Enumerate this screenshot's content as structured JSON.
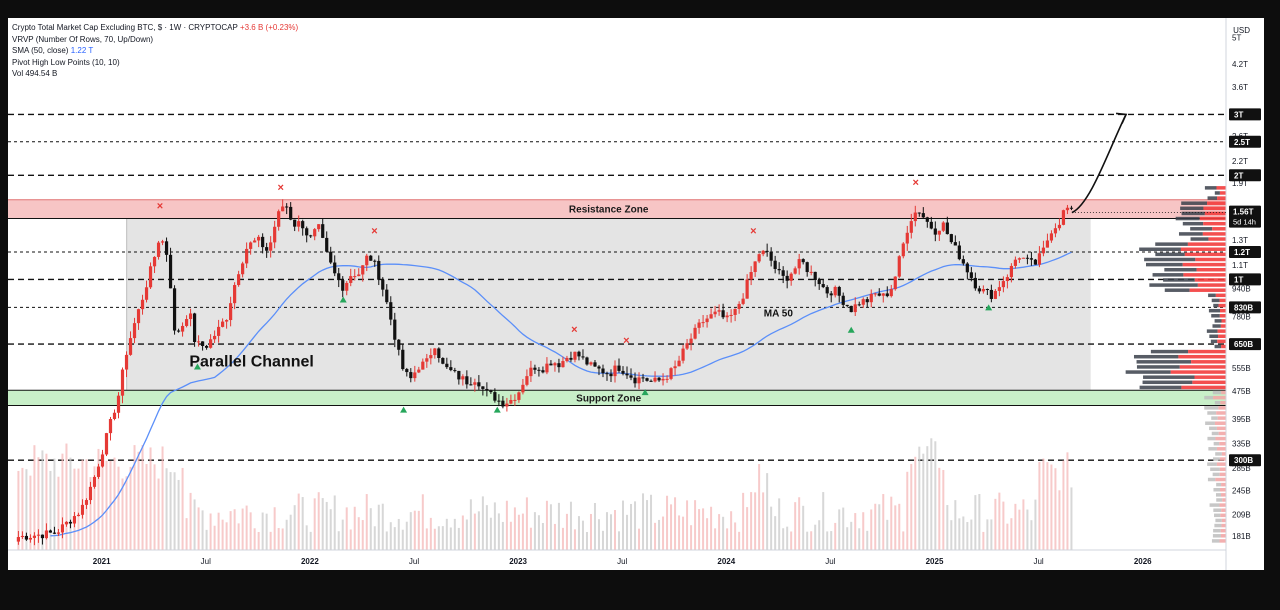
{
  "header": {
    "symbol_line": "Crypto Total Market Cap Excluding BTC, $ · 1W · CRYPTOCAP",
    "change": "+3.6 B (+0.23%)",
    "indicators": [
      {
        "name": "VRVP (Number Of Rows, 70, Up/Down)",
        "value": ""
      },
      {
        "name": "SMA (50, close)",
        "value": "1.22 T"
      },
      {
        "name": "Pivot High Low Points (10, 10)",
        "value": ""
      },
      {
        "name": "Vol",
        "value": "494.54 B"
      }
    ]
  },
  "currency": "USD",
  "colors": {
    "up": "#e53935",
    "down": "#111111",
    "sma": "#5b8ff9",
    "resistance": "#f7c5c5",
    "support": "#c8efc8",
    "channel": "#e4e4e4",
    "pivot_high": "#e53935",
    "pivot_low": "#26a65b"
  },
  "chart_data": {
    "type": "candlestick",
    "scale": "log",
    "x_range": [
      2020.55,
      2026.4
    ],
    "y_range": [
      165,
      5700
    ],
    "x_ticks": [
      {
        "x": 2021.0,
        "label": "2021",
        "bold": true
      },
      {
        "x": 2021.5,
        "label": "Jul",
        "bold": false
      },
      {
        "x": 2022.0,
        "label": "2022",
        "bold": true
      },
      {
        "x": 2022.5,
        "label": "Jul",
        "bold": false
      },
      {
        "x": 2023.0,
        "label": "2023",
        "bold": true
      },
      {
        "x": 2023.5,
        "label": "Jul",
        "bold": false
      },
      {
        "x": 2024.0,
        "label": "2024",
        "bold": true
      },
      {
        "x": 2024.5,
        "label": "Jul",
        "bold": false
      },
      {
        "x": 2025.0,
        "label": "2025",
        "bold": true
      },
      {
        "x": 2025.5,
        "label": "Jul",
        "bold": false
      },
      {
        "x": 2026.0,
        "label": "2026",
        "bold": true
      }
    ],
    "y_ticks": [
      {
        "v": 5000,
        "label": "5T"
      },
      {
        "v": 4200,
        "label": "4.2T"
      },
      {
        "v": 3600,
        "label": "3.6T"
      },
      {
        "v": 2600,
        "label": "2.6T"
      },
      {
        "v": 2200,
        "label": "2.2T"
      },
      {
        "v": 1900,
        "label": "1.9T"
      },
      {
        "v": 1300,
        "label": "1.3T"
      },
      {
        "v": 1100,
        "label": "1.1T"
      },
      {
        "v": 940,
        "label": "940B"
      },
      {
        "v": 780,
        "label": "780B"
      },
      {
        "v": 555,
        "label": "555B"
      },
      {
        "v": 475,
        "label": "475B"
      },
      {
        "v": 395,
        "label": "395B"
      },
      {
        "v": 335,
        "label": "335B"
      },
      {
        "v": 285,
        "label": "285B"
      },
      {
        "v": 245,
        "label": "245B"
      },
      {
        "v": 209,
        "label": "209B"
      },
      {
        "v": 181,
        "label": "181B"
      }
    ],
    "price_badges": [
      {
        "v": 3000,
        "label": "3T"
      },
      {
        "v": 2500,
        "label": "2.5T"
      },
      {
        "v": 2000,
        "label": "2T"
      },
      {
        "v": 1200,
        "label": "1.2T"
      },
      {
        "v": 1000,
        "label": "1T"
      },
      {
        "v": 830,
        "label": "830B"
      },
      {
        "v": 650,
        "label": "650B"
      },
      {
        "v": 300,
        "label": "300B"
      }
    ],
    "last_price": {
      "v": 1560,
      "label": "1.56T",
      "countdown": "5d 14h"
    },
    "levels": [
      {
        "v": 3000,
        "style": "long"
      },
      {
        "v": 2500,
        "style": "short"
      },
      {
        "v": 2000,
        "style": "long"
      },
      {
        "v": 1200,
        "style": "short"
      },
      {
        "v": 1000,
        "style": "long"
      },
      {
        "v": 830,
        "style": "short"
      },
      {
        "v": 650,
        "style": "long"
      },
      {
        "v": 300,
        "style": "long"
      }
    ],
    "zones": [
      {
        "name": "Resistance Zone",
        "low": 1500,
        "high": 1700,
        "x_start": 2020.55,
        "x_end": 2026.4
      },
      {
        "name": "Support Zone",
        "low": 432,
        "high": 478,
        "x_start": 2020.55,
        "x_end": 2026.4
      }
    ],
    "channel": {
      "label": "Parallel Channel",
      "x_start": 2021.12,
      "x_end": 2025.75,
      "low": 478,
      "high": 1500
    },
    "ma_label": "MA 50",
    "closes": [
      [
        2020.6,
        180
      ],
      [
        2020.78,
        185
      ],
      [
        2020.9,
        215
      ],
      [
        2020.96,
        262
      ],
      [
        2021.02,
        345
      ],
      [
        2021.08,
        460
      ],
      [
        2021.12,
        620
      ],
      [
        2021.15,
        720
      ],
      [
        2021.2,
        900
      ],
      [
        2021.25,
        1140
      ],
      [
        2021.28,
        1350
      ],
      [
        2021.32,
        1150
      ],
      [
        2021.35,
        700
      ],
      [
        2021.38,
        720
      ],
      [
        2021.42,
        820
      ],
      [
        2021.45,
        650
      ],
      [
        2021.5,
        640
      ],
      [
        2021.55,
        700
      ],
      [
        2021.6,
        780
      ],
      [
        2021.65,
        1030
      ],
      [
        2021.7,
        1250
      ],
      [
        2021.75,
        1300
      ],
      [
        2021.8,
        1200
      ],
      [
        2021.84,
        1500
      ],
      [
        2021.88,
        1680
      ],
      [
        2021.92,
        1440
      ],
      [
        2021.96,
        1460
      ],
      [
        2022.0,
        1300
      ],
      [
        2022.04,
        1420
      ],
      [
        2022.08,
        1180
      ],
      [
        2022.12,
        1030
      ],
      [
        2022.16,
        950
      ],
      [
        2022.2,
        1040
      ],
      [
        2022.24,
        1040
      ],
      [
        2022.28,
        1180
      ],
      [
        2022.32,
        1080
      ],
      [
        2022.36,
        900
      ],
      [
        2022.4,
        720
      ],
      [
        2022.44,
        560
      ],
      [
        2022.48,
        510
      ],
      [
        2022.52,
        560
      ],
      [
        2022.56,
        575
      ],
      [
        2022.6,
        650
      ],
      [
        2022.64,
        560
      ],
      [
        2022.68,
        540
      ],
      [
        2022.72,
        520
      ],
      [
        2022.76,
        505
      ],
      [
        2022.8,
        520
      ],
      [
        2022.84,
        470
      ],
      [
        2022.88,
        460
      ],
      [
        2022.92,
        440
      ],
      [
        2022.96,
        445
      ],
      [
        2023.0,
        470
      ],
      [
        2023.04,
        530
      ],
      [
        2023.08,
        560
      ],
      [
        2023.12,
        555
      ],
      [
        2023.16,
        580
      ],
      [
        2023.2,
        570
      ],
      [
        2023.24,
        600
      ],
      [
        2023.28,
        610
      ],
      [
        2023.32,
        580
      ],
      [
        2023.36,
        555
      ],
      [
        2023.4,
        545
      ],
      [
        2023.44,
        535
      ],
      [
        2023.48,
        560
      ],
      [
        2023.52,
        540
      ],
      [
        2023.56,
        515
      ],
      [
        2023.6,
        520
      ],
      [
        2023.64,
        505
      ],
      [
        2023.68,
        510
      ],
      [
        2023.72,
        530
      ],
      [
        2023.76,
        560
      ],
      [
        2023.8,
        630
      ],
      [
        2023.84,
        690
      ],
      [
        2023.88,
        750
      ],
      [
        2023.92,
        780
      ],
      [
        2023.96,
        800
      ],
      [
        2024.0,
        760
      ],
      [
        2024.04,
        800
      ],
      [
        2024.08,
        900
      ],
      [
        2024.12,
        1050
      ],
      [
        2024.16,
        1200
      ],
      [
        2024.2,
        1180
      ],
      [
        2024.24,
        1060
      ],
      [
        2024.28,
        1000
      ],
      [
        2024.32,
        1060
      ],
      [
        2024.36,
        1130
      ],
      [
        2024.4,
        1050
      ],
      [
        2024.44,
        1000
      ],
      [
        2024.48,
        920
      ],
      [
        2024.52,
        930
      ],
      [
        2024.56,
        870
      ],
      [
        2024.6,
        820
      ],
      [
        2024.64,
        860
      ],
      [
        2024.68,
        870
      ],
      [
        2024.72,
        910
      ],
      [
        2024.76,
        890
      ],
      [
        2024.8,
        960
      ],
      [
        2024.84,
        1200
      ],
      [
        2024.88,
        1480
      ],
      [
        2024.92,
        1600
      ],
      [
        2024.96,
        1480
      ],
      [
        2025.0,
        1380
      ],
      [
        2025.04,
        1450
      ],
      [
        2025.08,
        1280
      ],
      [
        2025.12,
        1170
      ],
      [
        2025.16,
        1060
      ],
      [
        2025.2,
        960
      ],
      [
        2025.24,
        920
      ],
      [
        2025.28,
        900
      ],
      [
        2025.32,
        980
      ],
      [
        2025.36,
        1050
      ],
      [
        2025.4,
        1180
      ],
      [
        2025.44,
        1130
      ],
      [
        2025.48,
        1100
      ],
      [
        2025.52,
        1200
      ],
      [
        2025.56,
        1390
      ],
      [
        2025.6,
        1470
      ],
      [
        2025.63,
        1620
      ],
      [
        2025.66,
        1560
      ]
    ],
    "pivot_highs": [
      [
        2021.28,
        1590
      ],
      [
        2021.86,
        1800
      ],
      [
        2022.31,
        1350
      ],
      [
        2023.27,
        700
      ],
      [
        2023.52,
        650
      ],
      [
        2024.13,
        1350
      ],
      [
        2024.91,
        1860
      ]
    ],
    "pivot_lows": [
      [
        2021.46,
        560
      ],
      [
        2022.16,
        875
      ],
      [
        2022.45,
        420
      ],
      [
        2022.9,
        420
      ],
      [
        2023.61,
        472
      ],
      [
        2024.6,
        715
      ],
      [
        2025.26,
        830
      ]
    ],
    "projection": [
      [
        2025.66,
        1560
      ],
      [
        2025.75,
        1650
      ],
      [
        2025.84,
        2400
      ],
      [
        2025.92,
        3000
      ]
    ]
  }
}
